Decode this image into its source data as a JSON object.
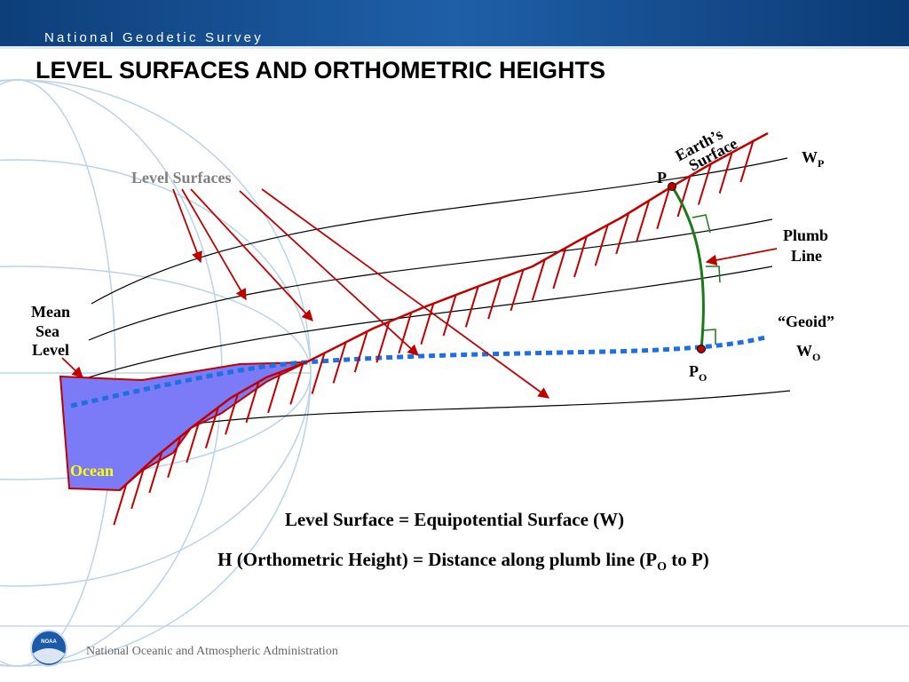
{
  "header": {
    "banner": "National Geodetic Survey",
    "title": "LEVEL SURFACES AND ORTHOMETRIC HEIGHTS"
  },
  "diagram": {
    "level_surfaces": "Level Surfaces",
    "earths_surface": [
      "Earth’s",
      "Surface"
    ],
    "mean_sea_level": [
      "Mean",
      "Sea",
      "Level"
    ],
    "ocean": "Ocean",
    "p": "P",
    "wp": {
      "base": "W",
      "sub": "P"
    },
    "plumb_line": [
      "Plumb",
      "Line"
    ],
    "geoid": "“Geoid”",
    "wo": {
      "base": "W",
      "sub": "O"
    },
    "po": {
      "base": "P",
      "sub": "O"
    }
  },
  "captions": {
    "line1": "Level Surface = Equipotential Surface (W)",
    "line2": {
      "before": "H (Orthometric Height) = Distance along plumb line (P",
      "sub": "O",
      "after": " to P)"
    }
  },
  "footer": {
    "logo": "NOAA",
    "agency": "National Oceanic and Atmospheric Administration"
  }
}
